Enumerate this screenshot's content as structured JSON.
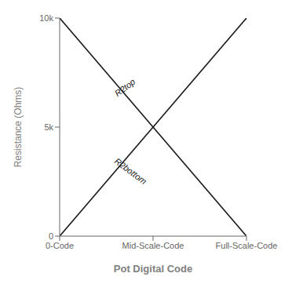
{
  "chart_data": {
    "type": "line",
    "xlabel": "Pot Digital Code",
    "ylabel": "Resistance (Ohms)",
    "x": [
      0,
      1.0
    ],
    "series": [
      {
        "color": "#1a1a1a",
        "values": [
          10000,
          0
        ]
      },
      {
        "color": "#1a1a1a",
        "values": [
          0,
          10000
        ]
      }
    ],
    "xlim": [
      0,
      1.0
    ],
    "ylim": [
      0,
      10000
    ],
    "xticks": [
      {
        "value": 0,
        "label": "0-Code"
      },
      {
        "value": 0.5,
        "label": "Mid-Scale-Code"
      },
      {
        "value": 1.0,
        "label": "Full-Scale-Code"
      }
    ],
    "yticks": [
      0,
      {
        "value": 5000,
        "label": "5k"
      },
      {
        "value": 10000,
        "label": "10k"
      }
    ],
    "annotations": [
      {
        "text": "R2top",
        "x": 0.3,
        "y": 6500
      },
      {
        "text": "R2bottom",
        "x": 0.3,
        "y": 3500
      }
    ],
    "grid": false
  }
}
